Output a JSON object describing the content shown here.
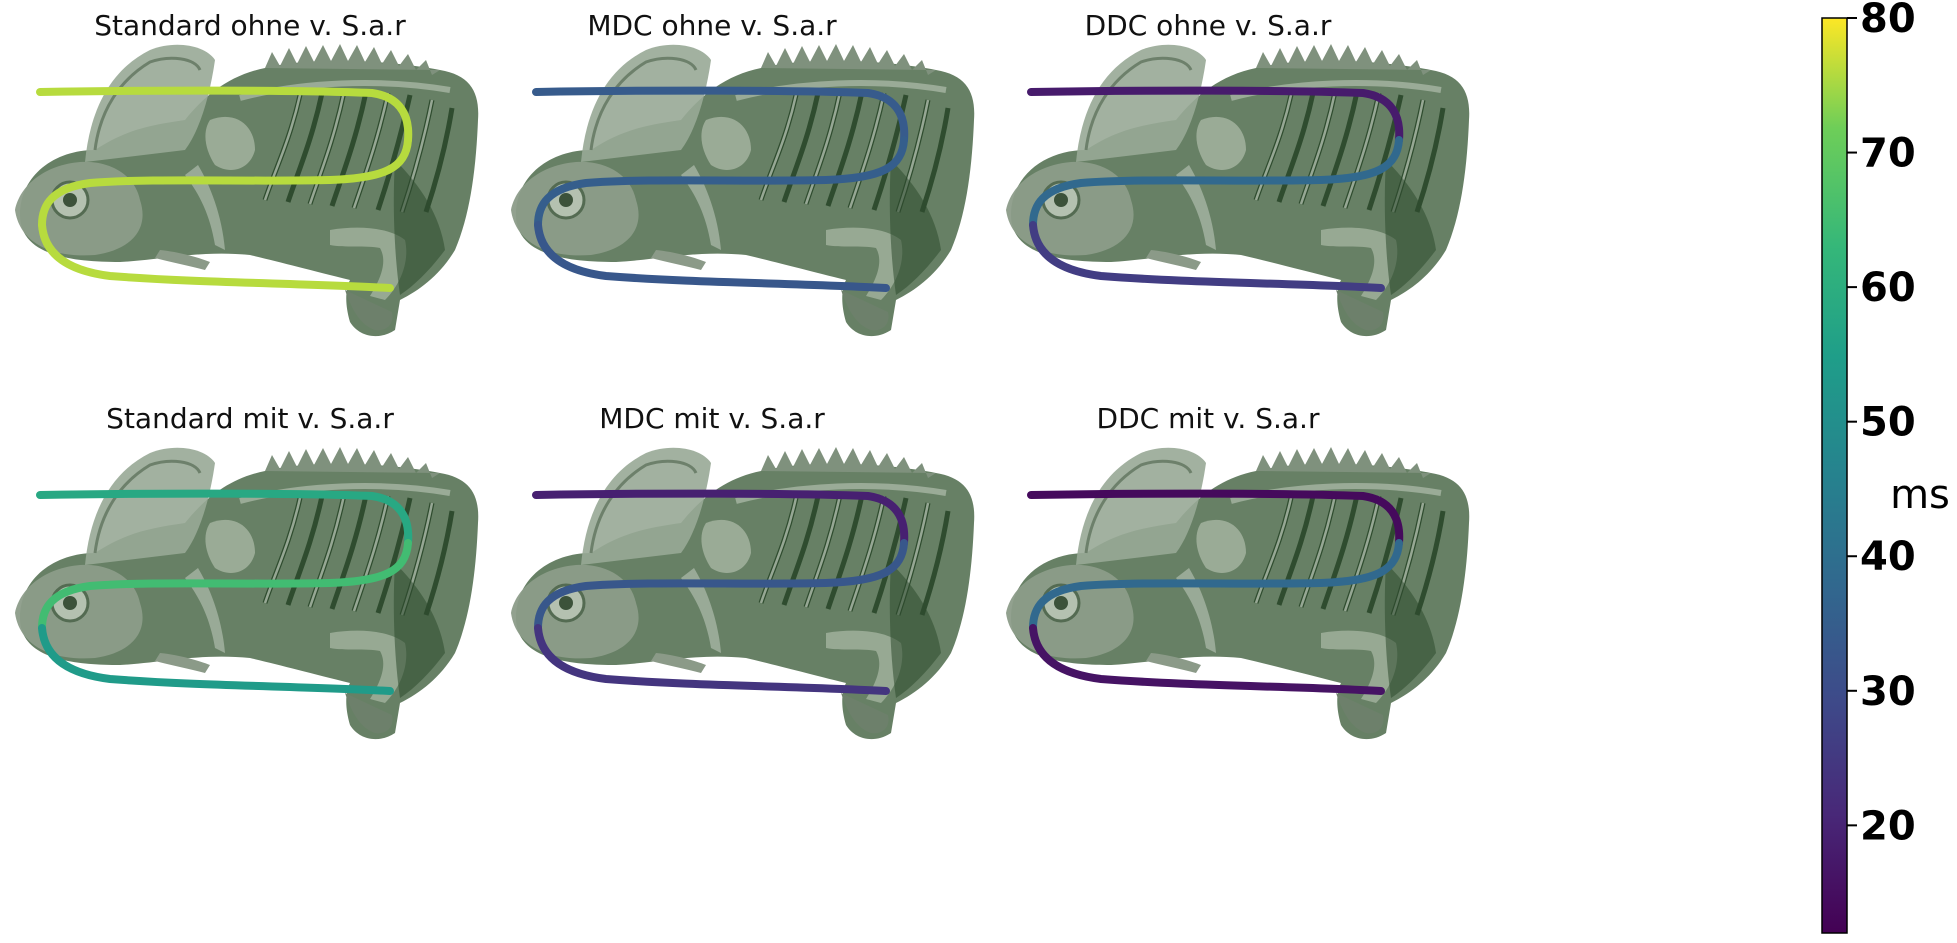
{
  "chart_data": {
    "type": "line",
    "title": "",
    "colormap": "viridis",
    "color_range": [
      12,
      80
    ],
    "panels": [
      {
        "title": "Standard ohne v. S.a.r",
        "values": [
          76,
          76,
          76
        ]
      },
      {
        "title": "MDC ohne v. S.a.r",
        "values": [
          34,
          35,
          33
        ]
      },
      {
        "title": "DDC ohne v. S.a.r",
        "values": [
          18,
          38,
          26
        ]
      },
      {
        "title": "Standard mit v. S.a.r",
        "values": [
          58,
          65,
          54
        ]
      },
      {
        "title": "MDC mit v. S.a.r",
        "values": [
          19,
          33,
          24
        ]
      },
      {
        "title": "DDC mit v. S.a.r",
        "values": [
          14,
          38,
          16
        ]
      }
    ],
    "colorbar": {
      "label": "ms",
      "ticks": [
        "20",
        "30",
        "40",
        "50",
        "60",
        "70",
        "80"
      ]
    }
  },
  "colors": {
    "bone": "#8a9a86",
    "tissue": "#3e5a3c",
    "dark": "#1e3a1e"
  }
}
